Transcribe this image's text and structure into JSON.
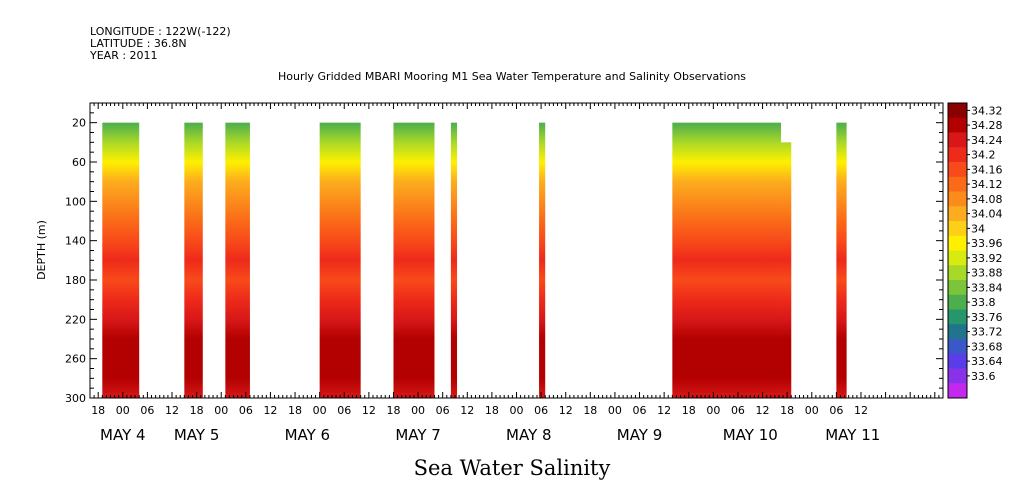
{
  "header": {
    "longitude": "LONGITUDE : 122W(-122)",
    "latitude": "LATITUDE : 36.8N",
    "year": "YEAR : 2011"
  },
  "chart_data": {
    "type": "heatmap",
    "title": "Hourly Gridded MBARI Mooring M1 Sea Water Temperature and Salinity Observations",
    "ylabel": "DEPTH (m)",
    "xlabel": "Sea Water Salinity",
    "xlim_hours": [
      -8,
      200
    ],
    "ylim": [
      0,
      300
    ],
    "y_inverted": true,
    "yticks": [
      20,
      60,
      100,
      140,
      180,
      220,
      260,
      300
    ],
    "hour_ticks": [
      "18",
      "00",
      "06",
      "12",
      "18",
      "00",
      "06",
      "12",
      "18",
      "00",
      "06",
      "12",
      "18",
      "00",
      "06",
      "12",
      "18",
      "00",
      "06",
      "12",
      "18",
      "00",
      "06",
      "12",
      "18",
      "00",
      "06",
      "12",
      "18",
      "00",
      "06",
      "12"
    ],
    "day_labels": [
      {
        "text": "MAY  4",
        "hour": 0
      },
      {
        "text": "MAY  5",
        "hour": 18
      },
      {
        "text": "MAY  6",
        "hour": 45
      },
      {
        "text": "MAY  7",
        "hour": 72
      },
      {
        "text": "MAY  8",
        "hour": 99
      },
      {
        "text": "MAY  9",
        "hour": 126
      },
      {
        "text": "MAY 10",
        "hour": 153
      },
      {
        "text": "MAY 11",
        "hour": 178
      }
    ],
    "data_segments": [
      {
        "start": -5,
        "end": 4,
        "top": 20
      },
      {
        "start": 15,
        "end": 19.5,
        "top": 20
      },
      {
        "start": 25,
        "end": 31,
        "top": 20
      },
      {
        "start": 48,
        "end": 58,
        "top": 20
      },
      {
        "start": 66,
        "end": 76,
        "top": 20
      },
      {
        "start": 80,
        "end": 81.5,
        "top": 20
      },
      {
        "start": 101.5,
        "end": 103,
        "top": 20
      },
      {
        "start": 134,
        "end": 160.5,
        "top": 20
      },
      {
        "start": 160.5,
        "end": 163,
        "top": 40
      },
      {
        "start": 174,
        "end": 176.5,
        "top": 20
      }
    ],
    "profile": [
      {
        "depth": 20,
        "value": 33.84
      },
      {
        "depth": 40,
        "value": 33.9
      },
      {
        "depth": 60,
        "value": 33.98
      },
      {
        "depth": 80,
        "value": 34.06
      },
      {
        "depth": 100,
        "value": 34.1
      },
      {
        "depth": 120,
        "value": 34.14
      },
      {
        "depth": 140,
        "value": 34.17
      },
      {
        "depth": 160,
        "value": 34.2
      },
      {
        "depth": 180,
        "value": 34.18
      },
      {
        "depth": 200,
        "value": 34.2
      },
      {
        "depth": 220,
        "value": 34.23
      },
      {
        "depth": 240,
        "value": 34.27
      },
      {
        "depth": 260,
        "value": 34.3
      },
      {
        "depth": 280,
        "value": 34.27
      },
      {
        "depth": 300,
        "value": 34.24
      }
    ],
    "colorbar": {
      "labels": [
        "34.32",
        "34.28",
        "34.24",
        "34.2",
        "34.16",
        "34.12",
        "34.08",
        "34.04",
        "34",
        "33.96",
        "33.92",
        "33.88",
        "33.84",
        "33.8",
        "33.76",
        "33.72",
        "33.68",
        "33.64",
        "33.6"
      ],
      "colors": [
        "#8b0000",
        "#b30000",
        "#d81818",
        "#ee2a1a",
        "#f84a1a",
        "#fa6a18",
        "#fb8c1c",
        "#fcac1e",
        "#fdd018",
        "#fef000",
        "#d8ea10",
        "#a8d828",
        "#7cc43a",
        "#4cae4c",
        "#28966c",
        "#20748c",
        "#3a58c8",
        "#5a3ce8",
        "#8a32ea",
        "#c228ee"
      ]
    }
  }
}
